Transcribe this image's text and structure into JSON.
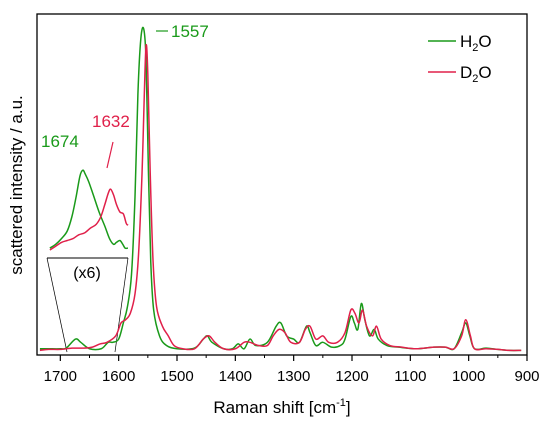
{
  "chart_data": {
    "type": "line",
    "title": "",
    "xlabel": "Raman shift [cm",
    "xlabel_sup": "-1",
    "xlabel_tail": "]",
    "ylabel": "scattered intensity / a.u.",
    "xlim": [
      1740,
      900
    ],
    "ylim": [
      0,
      1.0
    ],
    "x_reversed": true,
    "xticks": [
      1700,
      1600,
      1500,
      1400,
      1300,
      1200,
      1100,
      1000,
      900
    ],
    "xtick_labels": [
      "1700",
      "1600",
      "1500",
      "1400",
      "1300",
      "1200",
      "1100",
      "1000",
      "900"
    ],
    "legend_position": "top-right",
    "series": [
      {
        "name": "H2O",
        "legend_main": "H",
        "legend_sub": "2",
        "legend_tail": "O",
        "color": "#1a9a1a",
        "points": [
          [
            1735,
            0.01
          ],
          [
            1720,
            0.01
          ],
          [
            1700,
            0.01
          ],
          [
            1690,
            0.012
          ],
          [
            1674,
            0.04
          ],
          [
            1665,
            0.03
          ],
          [
            1650,
            0.01
          ],
          [
            1630,
            0.01
          ],
          [
            1618,
            0.03
          ],
          [
            1610,
            0.03
          ],
          [
            1600,
            0.04
          ],
          [
            1592,
            0.09
          ],
          [
            1585,
            0.14
          ],
          [
            1578,
            0.24
          ],
          [
            1572,
            0.48
          ],
          [
            1567,
            0.8
          ],
          [
            1562,
            0.97
          ],
          [
            1557,
            1.0
          ],
          [
            1553,
            0.9
          ],
          [
            1549,
            0.56
          ],
          [
            1545,
            0.28
          ],
          [
            1540,
            0.13
          ],
          [
            1530,
            0.05
          ],
          [
            1518,
            0.02
          ],
          [
            1500,
            0.01
          ],
          [
            1470,
            0.012
          ],
          [
            1455,
            0.04
          ],
          [
            1448,
            0.05
          ],
          [
            1440,
            0.03
          ],
          [
            1420,
            0.01
          ],
          [
            1405,
            0.01
          ],
          [
            1395,
            0.025
          ],
          [
            1385,
            0.01
          ],
          [
            1375,
            0.04
          ],
          [
            1365,
            0.02
          ],
          [
            1345,
            0.03
          ],
          [
            1330,
            0.08
          ],
          [
            1322,
            0.09
          ],
          [
            1312,
            0.05
          ],
          [
            1300,
            0.04
          ],
          [
            1290,
            0.03
          ],
          [
            1278,
            0.08
          ],
          [
            1272,
            0.06
          ],
          [
            1262,
            0.02
          ],
          [
            1250,
            0.03
          ],
          [
            1235,
            0.015
          ],
          [
            1220,
            0.02
          ],
          [
            1212,
            0.04
          ],
          [
            1202,
            0.11
          ],
          [
            1196,
            0.09
          ],
          [
            1190,
            0.07
          ],
          [
            1184,
            0.15
          ],
          [
            1178,
            0.1
          ],
          [
            1170,
            0.05
          ],
          [
            1162,
            0.07
          ],
          [
            1155,
            0.04
          ],
          [
            1140,
            0.02
          ],
          [
            1120,
            0.015
          ],
          [
            1090,
            0.01
          ],
          [
            1060,
            0.015
          ],
          [
            1040,
            0.015
          ],
          [
            1025,
            0.01
          ],
          [
            1012,
            0.06
          ],
          [
            1005,
            0.09
          ],
          [
            998,
            0.05
          ],
          [
            990,
            0.01
          ],
          [
            970,
            0.012
          ],
          [
            950,
            0.008
          ],
          [
            930,
            0.005
          ],
          [
            910,
            0.005
          ]
        ]
      },
      {
        "name": "D2O",
        "legend_main": "D",
        "legend_sub": "2",
        "legend_tail": "O",
        "color": "#e0204a",
        "points": [
          [
            1735,
            0.005
          ],
          [
            1720,
            0.008
          ],
          [
            1700,
            0.008
          ],
          [
            1680,
            0.012
          ],
          [
            1660,
            0.012
          ],
          [
            1645,
            0.015
          ],
          [
            1632,
            0.025
          ],
          [
            1620,
            0.03
          ],
          [
            1605,
            0.05
          ],
          [
            1596,
            0.09
          ],
          [
            1588,
            0.1
          ],
          [
            1580,
            0.12
          ],
          [
            1572,
            0.18
          ],
          [
            1566,
            0.3
          ],
          [
            1560,
            0.55
          ],
          [
            1556,
            0.8
          ],
          [
            1553,
            0.95
          ],
          [
            1550,
            0.86
          ],
          [
            1546,
            0.56
          ],
          [
            1541,
            0.28
          ],
          [
            1535,
            0.14
          ],
          [
            1525,
            0.08
          ],
          [
            1515,
            0.05
          ],
          [
            1505,
            0.02
          ],
          [
            1490,
            0.01
          ],
          [
            1470,
            0.01
          ],
          [
            1455,
            0.04
          ],
          [
            1445,
            0.05
          ],
          [
            1435,
            0.03
          ],
          [
            1420,
            0.01
          ],
          [
            1400,
            0.01
          ],
          [
            1385,
            0.03
          ],
          [
            1375,
            0.03
          ],
          [
            1360,
            0.02
          ],
          [
            1345,
            0.02
          ],
          [
            1335,
            0.05
          ],
          [
            1325,
            0.07
          ],
          [
            1315,
            0.06
          ],
          [
            1305,
            0.03
          ],
          [
            1290,
            0.03
          ],
          [
            1280,
            0.07
          ],
          [
            1272,
            0.08
          ],
          [
            1262,
            0.04
          ],
          [
            1250,
            0.05
          ],
          [
            1240,
            0.03
          ],
          [
            1225,
            0.03
          ],
          [
            1212,
            0.06
          ],
          [
            1202,
            0.13
          ],
          [
            1195,
            0.12
          ],
          [
            1188,
            0.09
          ],
          [
            1182,
            0.13
          ],
          [
            1175,
            0.08
          ],
          [
            1165,
            0.05
          ],
          [
            1158,
            0.08
          ],
          [
            1150,
            0.04
          ],
          [
            1135,
            0.02
          ],
          [
            1115,
            0.015
          ],
          [
            1090,
            0.01
          ],
          [
            1060,
            0.015
          ],
          [
            1040,
            0.015
          ],
          [
            1025,
            0.01
          ],
          [
            1012,
            0.05
          ],
          [
            1005,
            0.1
          ],
          [
            997,
            0.05
          ],
          [
            990,
            0.01
          ],
          [
            970,
            0.01
          ],
          [
            950,
            0.008
          ],
          [
            930,
            0.005
          ],
          [
            910,
            0.005
          ]
        ]
      }
    ],
    "inset": {
      "label": "(x6)",
      "range": [
        1740,
        1600
      ],
      "series": [
        {
          "name": "H2O",
          "points": [
            [
              1735,
              0.02
            ],
            [
              1725,
              0.06
            ],
            [
              1715,
              0.12
            ],
            [
              1705,
              0.2
            ],
            [
              1697,
              0.35
            ],
            [
              1690,
              0.55
            ],
            [
              1683,
              0.78
            ],
            [
              1678,
              0.84
            ],
            [
              1674,
              0.8
            ],
            [
              1668,
              0.72
            ],
            [
              1660,
              0.58
            ],
            [
              1650,
              0.4
            ],
            [
              1640,
              0.25
            ],
            [
              1632,
              0.12
            ],
            [
              1625,
              0.06
            ],
            [
              1620,
              0.08
            ],
            [
              1614,
              0.1
            ],
            [
              1609,
              0.06
            ],
            [
              1605,
              0.02
            ],
            [
              1600,
              0.02
            ]
          ]
        },
        {
          "name": "D2O",
          "points": [
            [
              1735,
              0.0
            ],
            [
              1725,
              0.04
            ],
            [
              1715,
              0.08
            ],
            [
              1705,
              0.1
            ],
            [
              1695,
              0.12
            ],
            [
              1685,
              0.16
            ],
            [
              1675,
              0.18
            ],
            [
              1665,
              0.23
            ],
            [
              1655,
              0.27
            ],
            [
              1647,
              0.35
            ],
            [
              1640,
              0.48
            ],
            [
              1634,
              0.6
            ],
            [
              1630,
              0.64
            ],
            [
              1625,
              0.58
            ],
            [
              1620,
              0.48
            ],
            [
              1614,
              0.4
            ],
            [
              1608,
              0.38
            ],
            [
              1603,
              0.28
            ],
            [
              1600,
              0.26
            ]
          ]
        }
      ]
    },
    "annotations": [
      {
        "text": "1557",
        "series": "H2O",
        "x": 1557,
        "color": "#1a9a1a"
      },
      {
        "text": "1674",
        "series": "H2O",
        "x": 1674,
        "color": "#1a9a1a",
        "in_inset": true
      },
      {
        "text": "1632",
        "series": "D2O",
        "x": 1632,
        "color": "#e0204a",
        "in_inset": true
      }
    ]
  }
}
